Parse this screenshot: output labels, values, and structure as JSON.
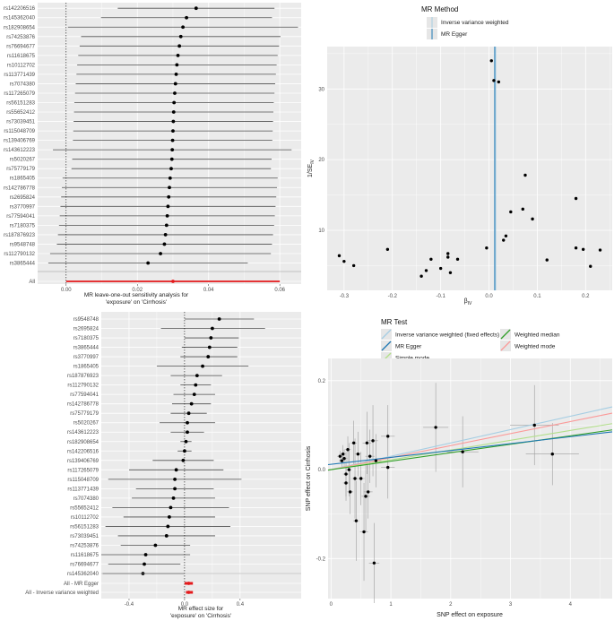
{
  "colors": {
    "panel": "#ebebeb",
    "grid": "#ffffff",
    "point": "#000000",
    "ci": "#4d4d4d",
    "red": "#e41a1c",
    "ivw": "#a6cee3",
    "egger": "#1f78b4",
    "simple": "#b2df8a",
    "wmedian": "#33a02c",
    "wmode": "#fb9a99"
  },
  "chart_data": [
    {
      "id": "loo",
      "type": "forest",
      "title": "",
      "xlabel": "MR leave-one-out sensitivity analysis for\n'exposure' on 'Cirrhosis'",
      "xlim": [
        -0.008,
        0.066
      ],
      "xticks": [
        "0.00",
        "0.02",
        "0.04",
        "0.06"
      ],
      "xtick_values": [
        0.0,
        0.02,
        0.04,
        0.06
      ],
      "rows": [
        {
          "label": "rs142206516",
          "b": 0.0365,
          "lo": 0.0145,
          "hi": 0.0585
        },
        {
          "label": "rs145362040",
          "b": 0.0338,
          "lo": 0.0098,
          "hi": 0.0578
        },
        {
          "label": "rs182908654",
          "b": 0.0328,
          "lo": 0.0005,
          "hi": 0.0651
        },
        {
          "label": "rs74253876",
          "b": 0.0322,
          "lo": 0.0042,
          "hi": 0.0602
        },
        {
          "label": "rs76694677",
          "b": 0.0318,
          "lo": 0.0038,
          "hi": 0.0598
        },
        {
          "label": "rs11618675",
          "b": 0.0314,
          "lo": 0.0034,
          "hi": 0.0594
        },
        {
          "label": "rs10112702",
          "b": 0.0311,
          "lo": 0.0031,
          "hi": 0.0591
        },
        {
          "label": "rs113771439",
          "b": 0.0309,
          "lo": 0.0029,
          "hi": 0.0589
        },
        {
          "label": "rs7074380",
          "b": 0.0307,
          "lo": 0.0027,
          "hi": 0.0587
        },
        {
          "label": "rs117265079",
          "b": 0.0305,
          "lo": 0.0025,
          "hi": 0.0585
        },
        {
          "label": "rs56151283",
          "b": 0.0303,
          "lo": 0.0023,
          "hi": 0.0583
        },
        {
          "label": "rs55652412",
          "b": 0.0302,
          "lo": 0.0022,
          "hi": 0.0582
        },
        {
          "label": "rs73039451",
          "b": 0.0301,
          "lo": 0.0021,
          "hi": 0.0581
        },
        {
          "label": "rs115048709",
          "b": 0.03,
          "lo": 0.002,
          "hi": 0.058
        },
        {
          "label": "rs139406769",
          "b": 0.0299,
          "lo": 0.0019,
          "hi": 0.0579
        },
        {
          "label": "rs143612223",
          "b": 0.0298,
          "lo": -0.0037,
          "hi": 0.0633
        },
        {
          "label": "rs5020267",
          "b": 0.0297,
          "lo": 0.0017,
          "hi": 0.0577
        },
        {
          "label": "rs75779179",
          "b": 0.0295,
          "lo": 0.0015,
          "hi": 0.0575
        },
        {
          "label": "rs1865405",
          "b": 0.0292,
          "lo": -0.001,
          "hi": 0.0594
        },
        {
          "label": "rs142786778",
          "b": 0.029,
          "lo": -0.0012,
          "hi": 0.0592
        },
        {
          "label": "rs2695824",
          "b": 0.0288,
          "lo": -0.0014,
          "hi": 0.059
        },
        {
          "label": "rs3770997",
          "b": 0.0286,
          "lo": -0.0016,
          "hi": 0.0588
        },
        {
          "label": "rs77594041",
          "b": 0.0284,
          "lo": -0.0018,
          "hi": 0.0586
        },
        {
          "label": "rs7180375",
          "b": 0.0282,
          "lo": -0.002,
          "hi": 0.0584
        },
        {
          "label": "rs187876923",
          "b": 0.0279,
          "lo": -0.0023,
          "hi": 0.0581
        },
        {
          "label": "rs9548748",
          "b": 0.0276,
          "lo": -0.0026,
          "hi": 0.0578
        },
        {
          "label": "rs112790132",
          "b": 0.0265,
          "lo": -0.0045,
          "hi": 0.0575
        },
        {
          "label": "rs3865444",
          "b": 0.023,
          "lo": -0.005,
          "hi": 0.051
        }
      ],
      "summary": {
        "label": "All",
        "b": 0.03,
        "lo": 0.0,
        "hi": 0.06
      }
    },
    {
      "id": "funnel",
      "type": "scatter",
      "legend_title": "MR Method",
      "legend": [
        "Inverse variance weighted",
        "MR Egger"
      ],
      "xlabel": "βIV",
      "ylabel": "1/SEIV",
      "xlim": [
        -0.335,
        0.255
      ],
      "ylim": [
        1.5,
        36
      ],
      "xticks": [
        "-0.3",
        "-0.2",
        "-0.1",
        "0.0",
        "0.1",
        "0.2"
      ],
      "xtick_values": [
        -0.3,
        -0.2,
        -0.1,
        0.0,
        0.1,
        0.2
      ],
      "yticks": [
        "10",
        "20",
        "30"
      ],
      "ytick_values": [
        10,
        20,
        30
      ],
      "vlines": {
        "ivw": 0.0135,
        "egger": 0.0118
      },
      "points": [
        [
          -0.31,
          6.4
        ],
        [
          -0.3,
          5.6
        ],
        [
          -0.28,
          5.0
        ],
        [
          -0.21,
          7.3
        ],
        [
          -0.14,
          3.5
        ],
        [
          -0.13,
          4.3
        ],
        [
          -0.12,
          5.9
        ],
        [
          -0.1,
          4.6
        ],
        [
          -0.085,
          6.7
        ],
        [
          -0.085,
          6.2
        ],
        [
          -0.08,
          4.0
        ],
        [
          -0.065,
          5.9
        ],
        [
          -0.005,
          7.5
        ],
        [
          0.005,
          34.0
        ],
        [
          0.01,
          31.2
        ],
        [
          0.02,
          31.0
        ],
        [
          0.03,
          8.6
        ],
        [
          0.035,
          9.2
        ],
        [
          0.045,
          12.6
        ],
        [
          0.07,
          13.0
        ],
        [
          0.075,
          17.8
        ],
        [
          0.09,
          11.6
        ],
        [
          0.12,
          5.8
        ],
        [
          0.18,
          14.5
        ],
        [
          0.18,
          7.5
        ],
        [
          0.195,
          7.3
        ],
        [
          0.21,
          4.9
        ],
        [
          0.23,
          7.2
        ]
      ]
    },
    {
      "id": "single",
      "type": "forest",
      "xlabel": "MR effect size for\n'exposure' on 'Cirrhosis'",
      "xlim": [
        -0.6,
        0.84
      ],
      "xticks": [
        "-0.4",
        "0.0",
        "0.4"
      ],
      "xtick_values": [
        -0.4,
        0.0,
        0.4
      ],
      "rows": [
        {
          "label": "rs9548748",
          "b": 0.25,
          "lo": 0.0,
          "hi": 0.5
        },
        {
          "label": "rs2695824",
          "b": 0.2,
          "lo": -0.17,
          "hi": 0.58
        },
        {
          "label": "rs7180375",
          "b": 0.19,
          "lo": 0.0,
          "hi": 0.39
        },
        {
          "label": "rs3865444",
          "b": 0.18,
          "lo": -0.02,
          "hi": 0.38
        },
        {
          "label": "rs3770997",
          "b": 0.17,
          "lo": -0.03,
          "hi": 0.38
        },
        {
          "label": "rs1865405",
          "b": 0.13,
          "lo": -0.2,
          "hi": 0.46
        },
        {
          "label": "rs187876923",
          "b": 0.09,
          "lo": -0.1,
          "hi": 0.27
        },
        {
          "label": "rs112790132",
          "b": 0.08,
          "lo": -0.03,
          "hi": 0.19
        },
        {
          "label": "rs77594041",
          "b": 0.07,
          "lo": -0.08,
          "hi": 0.22
        },
        {
          "label": "rs142786778",
          "b": 0.05,
          "lo": -0.09,
          "hi": 0.19
        },
        {
          "label": "rs75779179",
          "b": 0.03,
          "lo": -0.1,
          "hi": 0.16
        },
        {
          "label": "rs5020267",
          "b": 0.02,
          "lo": -0.18,
          "hi": 0.22
        },
        {
          "label": "rs143612223",
          "b": 0.02,
          "lo": -0.1,
          "hi": 0.14
        },
        {
          "label": "rs182908654",
          "b": 0.01,
          "lo": -0.03,
          "hi": 0.05
        },
        {
          "label": "rs142206516",
          "b": 0.0,
          "lo": -0.05,
          "hi": 0.05
        },
        {
          "label": "rs139406769",
          "b": -0.01,
          "lo": -0.23,
          "hi": 0.21
        },
        {
          "label": "rs117265079",
          "b": -0.06,
          "lo": -0.4,
          "hi": 0.28
        },
        {
          "label": "rs115048709",
          "b": -0.07,
          "lo": -0.55,
          "hi": 0.41
        },
        {
          "label": "rs113771439",
          "b": -0.07,
          "lo": -0.35,
          "hi": 0.21
        },
        {
          "label": "rs7074380",
          "b": -0.08,
          "lo": -0.38,
          "hi": 0.22
        },
        {
          "label": "rs55652412",
          "b": -0.1,
          "lo": -0.52,
          "hi": 0.32
        },
        {
          "label": "rs10112702",
          "b": -0.11,
          "lo": -0.44,
          "hi": 0.22
        },
        {
          "label": "rs56151283",
          "b": -0.12,
          "lo": -0.57,
          "hi": 0.33
        },
        {
          "label": "rs73039451",
          "b": -0.13,
          "lo": -0.48,
          "hi": 0.22
        },
        {
          "label": "rs74253876",
          "b": -0.21,
          "lo": -0.46,
          "hi": 0.04
        },
        {
          "label": "rs11618675",
          "b": -0.28,
          "lo": -0.6,
          "hi": 0.04
        },
        {
          "label": "rs76694677",
          "b": -0.29,
          "lo": -0.55,
          "hi": -0.03
        },
        {
          "label": "rs145362040",
          "b": -0.3,
          "lo": -0.59,
          "hi": 0.0
        }
      ],
      "summary": [
        {
          "label": "All - MR Egger",
          "b": 0.03,
          "lo": -0.0,
          "hi": 0.06
        },
        {
          "label": "All - Inverse variance weighted",
          "b": 0.03,
          "lo": 0.01,
          "hi": 0.06
        }
      ]
    },
    {
      "id": "scatter",
      "type": "scatter",
      "legend_title": "MR Test",
      "legend": [
        "Inverse variance weighted (fixed effects)",
        "MR Egger",
        "Simple mode",
        "Weighted median",
        "Weighted mode"
      ],
      "xlabel": "SNP effect on exposure",
      "ylabel": "SNP effect on Cirrhosis",
      "xlim": [
        -0.05,
        4.7
      ],
      "ylim": [
        -0.29,
        0.25
      ],
      "xticks": [
        "0",
        "1",
        "2",
        "3",
        "4"
      ],
      "xtick_values": [
        0,
        1,
        2,
        3,
        4
      ],
      "yticks": [
        "-0.2",
        "0.0",
        "0.2"
      ],
      "ytick_values": [
        -0.2,
        0.0,
        0.2
      ],
      "lines": [
        {
          "name": "ivw",
          "intercept": 0.0,
          "slope": 0.03
        },
        {
          "name": "wmode",
          "intercept": 0.0,
          "slope": 0.027
        },
        {
          "name": "simple",
          "intercept": 0.0,
          "slope": 0.022
        },
        {
          "name": "wmedian",
          "intercept": 0.0,
          "slope": 0.019
        },
        {
          "name": "egger",
          "intercept": 0.012,
          "slope": 0.0155
        }
      ],
      "points": [
        {
          "x": 0.15,
          "y": 0.03,
          "sy": 0.012
        },
        {
          "x": 0.18,
          "y": 0.02,
          "sy": 0.015
        },
        {
          "x": 0.2,
          "y": 0.035,
          "sy": 0.02
        },
        {
          "x": 0.22,
          "y": 0.025,
          "sy": 0.02
        },
        {
          "x": 0.25,
          "y": -0.01,
          "sy": 0.05
        },
        {
          "x": 0.25,
          "y": -0.03,
          "sy": 0.04
        },
        {
          "x": 0.28,
          "y": 0.045,
          "sy": 0.03
        },
        {
          "x": 0.3,
          "y": 0.0,
          "sy": 0.06
        },
        {
          "x": 0.32,
          "y": -0.05,
          "sy": 0.05
        },
        {
          "x": 0.38,
          "y": 0.06,
          "sy": 0.05
        },
        {
          "x": 0.4,
          "y": -0.02,
          "sy": 0.09
        },
        {
          "x": 0.42,
          "y": -0.115,
          "sy": 0.09
        },
        {
          "x": 0.45,
          "y": 0.035,
          "sy": 0.05
        },
        {
          "x": 0.5,
          "y": -0.02,
          "sy": 0.06
        },
        {
          "x": 0.55,
          "y": -0.14,
          "sy": 0.11
        },
        {
          "x": 0.58,
          "y": -0.06,
          "sy": 0.08
        },
        {
          "x": 0.6,
          "y": 0.06,
          "sy": 0.07
        },
        {
          "x": 0.62,
          "y": -0.05,
          "sy": 0.06
        },
        {
          "x": 0.65,
          "y": 0.03,
          "sy": 0.06
        },
        {
          "x": 0.7,
          "y": 0.065,
          "sy": 0.08
        },
        {
          "x": 0.72,
          "y": -0.21,
          "sy": 0.09
        },
        {
          "x": 0.75,
          "y": 0.02,
          "sy": 0.06
        },
        {
          "x": 0.95,
          "y": 0.075,
          "sy": 0.07
        },
        {
          "x": 0.95,
          "y": 0.005,
          "sy": 0.07
        },
        {
          "x": 1.75,
          "y": 0.095,
          "sy": 0.1
        },
        {
          "x": 2.2,
          "y": 0.04,
          "sy": 0.08
        },
        {
          "x": 3.4,
          "y": 0.1,
          "sy": 0.09
        },
        {
          "x": 3.7,
          "y": 0.035,
          "sy": 0.07
        }
      ]
    }
  ]
}
